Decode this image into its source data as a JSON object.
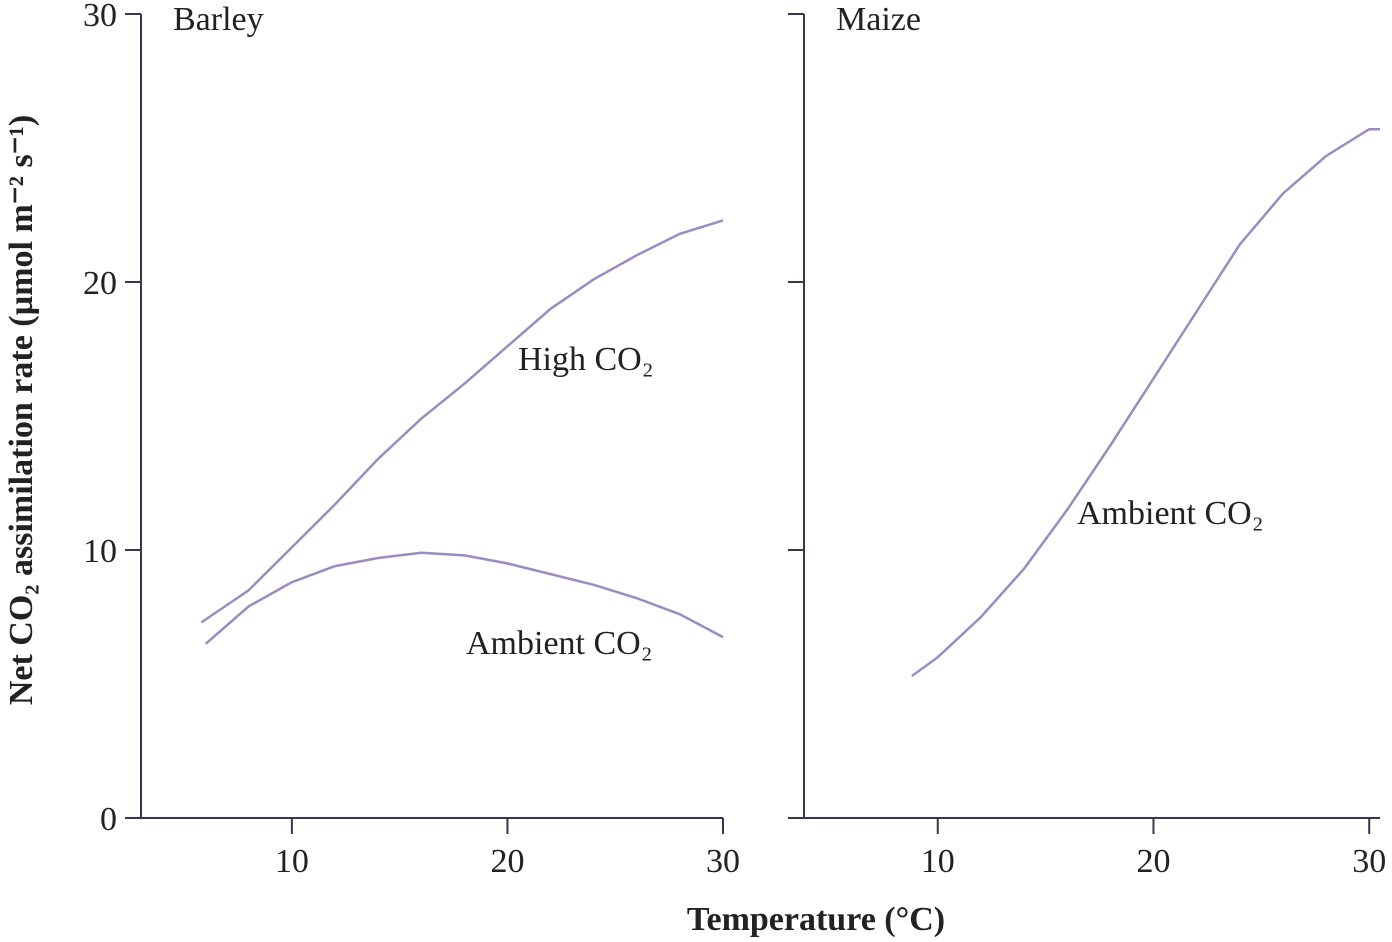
{
  "xlabel": "Temperature (°C)",
  "ylabel": "Net CO₂ assimilation rate (µmol m⁻² s⁻¹)",
  "chart_data": [
    {
      "type": "line",
      "title": "Barley",
      "xlim": [
        3,
        30
      ],
      "xticks": [
        10,
        20,
        30
      ],
      "ylim": [
        0,
        30
      ],
      "yticks": [
        0,
        10,
        20,
        30
      ],
      "ytick_labels": true,
      "series": [
        {
          "name": "High CO₂",
          "color": "#9a8cc2",
          "x": [
            5.8,
            8,
            10,
            12,
            14,
            16,
            18,
            20,
            22,
            24,
            26,
            28,
            30
          ],
          "values": [
            7.3,
            8.5,
            10.1,
            11.7,
            13.4,
            14.9,
            16.2,
            17.6,
            19.0,
            20.1,
            21.0,
            21.8,
            22.3
          ]
        },
        {
          "name": "Ambient CO₂",
          "color": "#9a8cc2",
          "x": [
            6,
            8,
            10,
            12,
            14,
            16,
            18,
            20,
            22,
            24,
            26,
            28,
            30
          ],
          "values": [
            6.5,
            7.9,
            8.8,
            9.4,
            9.7,
            9.9,
            9.8,
            9.5,
            9.1,
            8.7,
            8.2,
            7.6,
            6.75
          ]
        }
      ]
    },
    {
      "type": "line",
      "title": "Maize",
      "xlim": [
        3.8,
        30.5
      ],
      "xticks": [
        10,
        20,
        30
      ],
      "ylim": [
        0,
        30
      ],
      "yticks": [
        0,
        10,
        20,
        30
      ],
      "ytick_labels": false,
      "series": [
        {
          "name": "Ambient CO₂",
          "color": "#9a8cc2",
          "x": [
            8.8,
            10,
            12,
            14,
            16,
            18,
            20,
            22,
            24,
            26,
            28,
            30,
            30.5
          ],
          "values": [
            5.3,
            6.0,
            7.5,
            9.3,
            11.5,
            13.9,
            16.4,
            18.9,
            21.4,
            23.3,
            24.7,
            25.7,
            25.7
          ]
        }
      ]
    }
  ]
}
